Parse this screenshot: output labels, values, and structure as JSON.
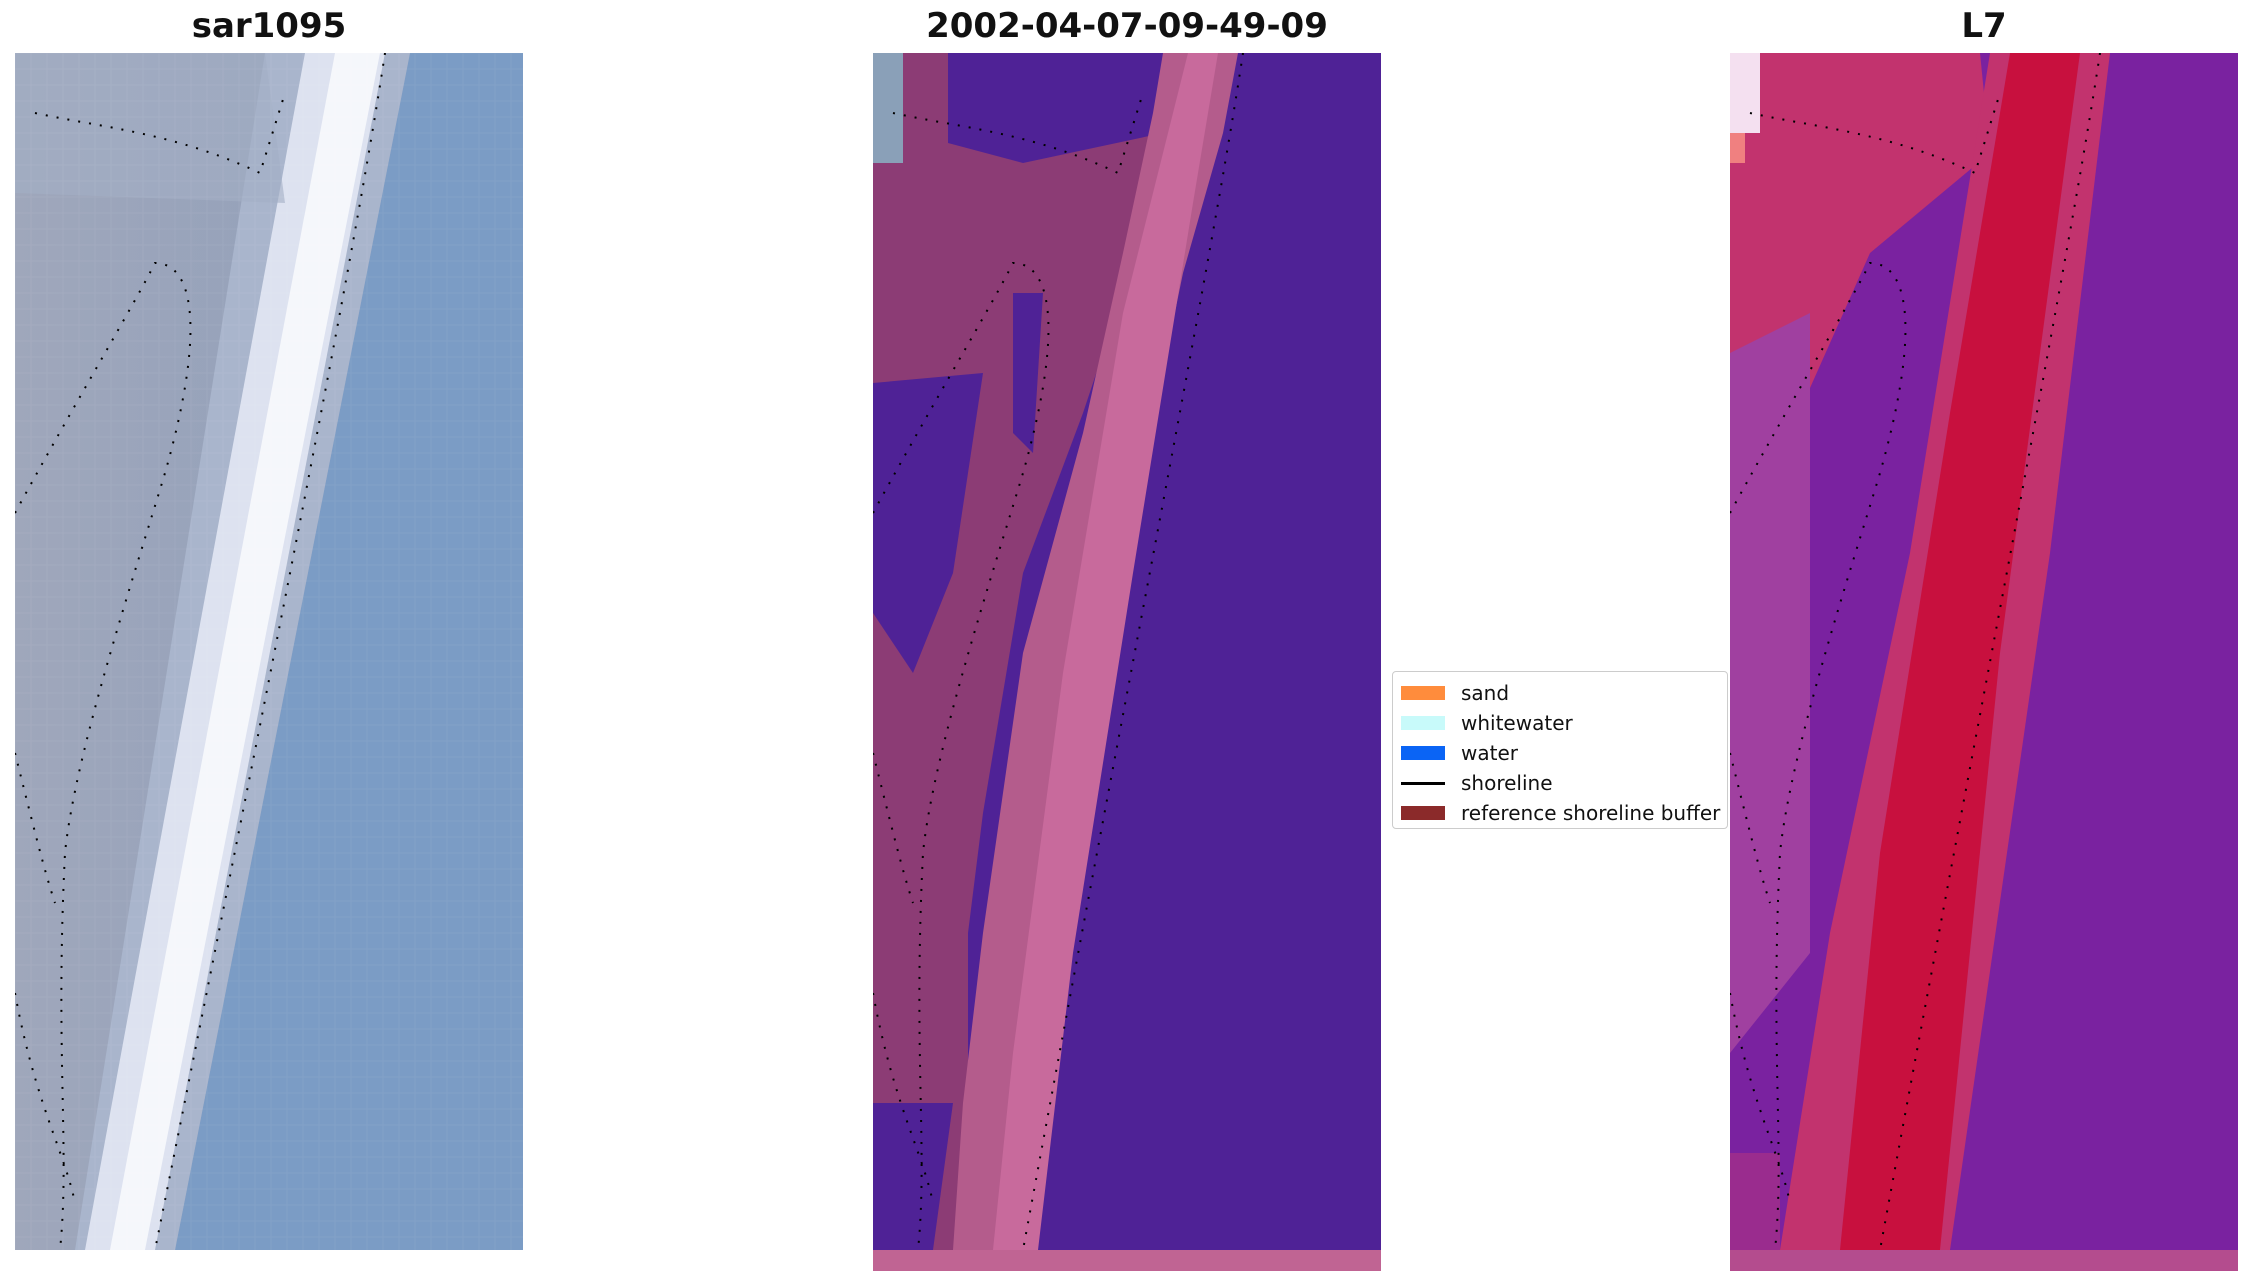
{
  "panels": [
    {
      "title": "sar1095"
    },
    {
      "title": "2002-04-07-09-49-09"
    },
    {
      "title": "L7"
    }
  ],
  "legend": {
    "items": [
      {
        "label": "sand",
        "color": "#ff8c3c",
        "kind": "patch"
      },
      {
        "label": "whitewater",
        "color": "#c8fafa",
        "kind": "patch"
      },
      {
        "label": "water",
        "color": "#0a64f5",
        "kind": "patch"
      },
      {
        "label": "shoreline",
        "color": "#000000",
        "kind": "line"
      },
      {
        "label": "reference shoreline buffer",
        "color": "#8b2a2a",
        "kind": "patch"
      }
    ]
  }
}
